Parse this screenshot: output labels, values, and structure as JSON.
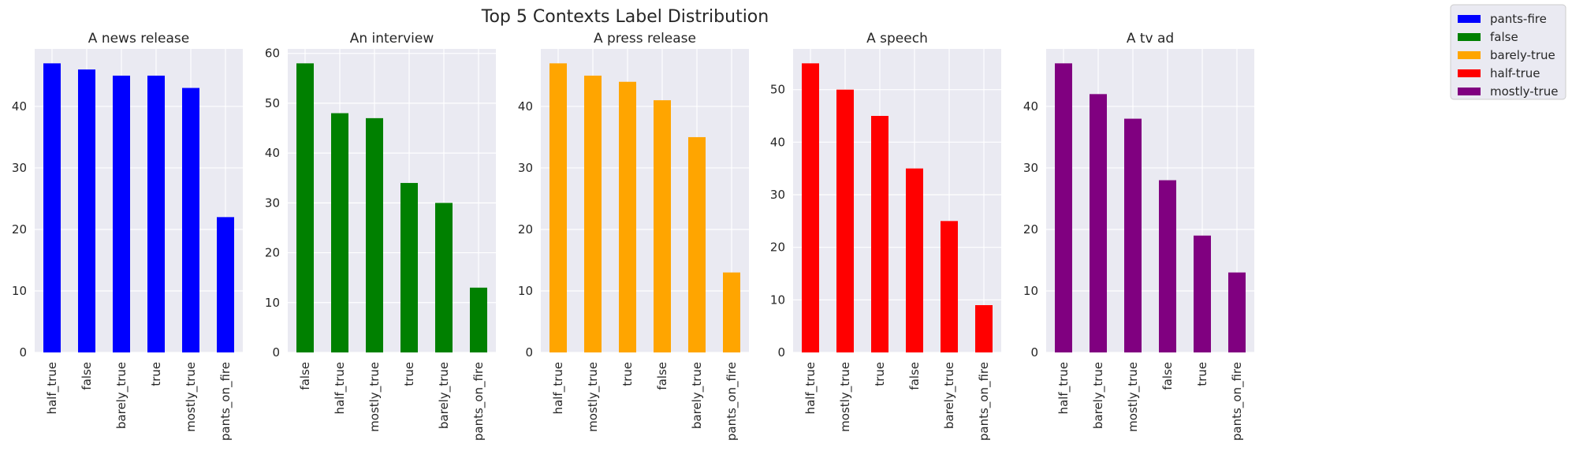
{
  "figure_title": "Top 5 Contexts Label Distribution",
  "legend": [
    {
      "label": "pants-fire",
      "color": "#0000ff"
    },
    {
      "label": "false",
      "color": "#008000"
    },
    {
      "label": "barely-true",
      "color": "#ffa500"
    },
    {
      "label": "half-true",
      "color": "#ff0000"
    },
    {
      "label": "mostly-true",
      "color": "#800080"
    }
  ],
  "chart_data": [
    {
      "type": "bar",
      "title": "A news release",
      "color": "#0000ff",
      "categories": [
        "half_true",
        "false",
        "barely_true",
        "true",
        "mostly_true",
        "pants_on_fire"
      ],
      "values": [
        47,
        46,
        45,
        45,
        43,
        22
      ],
      "ylim": [
        0,
        49.35
      ],
      "yticks": [
        0,
        10,
        20,
        30,
        40
      ]
    },
    {
      "type": "bar",
      "title": "An interview",
      "color": "#008000",
      "categories": [
        "false",
        "half_true",
        "mostly_true",
        "true",
        "barely_true",
        "pants_on_fire"
      ],
      "values": [
        58,
        48,
        47,
        34,
        30,
        13
      ],
      "ylim": [
        0,
        60.9
      ],
      "yticks": [
        0,
        10,
        20,
        30,
        40,
        50,
        60
      ]
    },
    {
      "type": "bar",
      "title": "A press release",
      "color": "#ffa500",
      "categories": [
        "half_true",
        "mostly_true",
        "true",
        "false",
        "barely_true",
        "pants_on_fire"
      ],
      "values": [
        47,
        45,
        44,
        41,
        35,
        13
      ],
      "ylim": [
        0,
        49.35
      ],
      "yticks": [
        0,
        10,
        20,
        30,
        40
      ]
    },
    {
      "type": "bar",
      "title": "A speech",
      "color": "#ff0000",
      "categories": [
        "half_true",
        "mostly_true",
        "true",
        "false",
        "barely_true",
        "pants_on_fire"
      ],
      "values": [
        55,
        50,
        45,
        35,
        25,
        9
      ],
      "ylim": [
        0,
        57.75
      ],
      "yticks": [
        0,
        10,
        20,
        30,
        40,
        50
      ]
    },
    {
      "type": "bar",
      "title": "A tv ad",
      "color": "#800080",
      "categories": [
        "half_true",
        "barely_true",
        "mostly_true",
        "false",
        "true",
        "pants_on_fire"
      ],
      "values": [
        47,
        42,
        38,
        28,
        19,
        13
      ],
      "ylim": [
        0,
        49.35
      ],
      "yticks": [
        0,
        10,
        20,
        30,
        40
      ]
    }
  ]
}
